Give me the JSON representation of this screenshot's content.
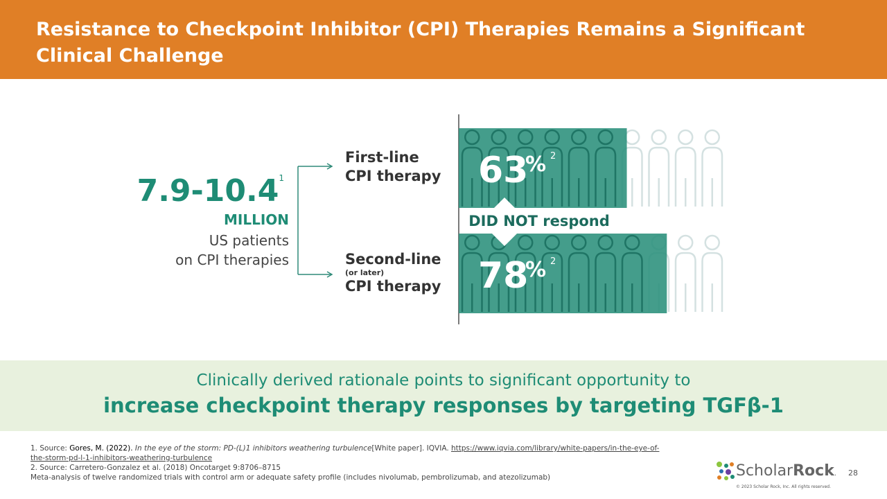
{
  "header": {
    "title": "Resistance to Checkpoint Inhibitor (CPI) Therapies Remains a Significant Clinical Challenge"
  },
  "patients": {
    "range": "7.9-10.4",
    "footnote": "1",
    "unit": "MILLION",
    "description_lines": [
      "US patients",
      "on CPI therapies"
    ]
  },
  "pictogram": {
    "caption": "DID NOT respond",
    "rows": [
      {
        "label_lines": [
          "First-line",
          "CPI therapy"
        ],
        "value": 63,
        "unit": "%",
        "footnote": "2"
      },
      {
        "label_lines": [
          "Second-line",
          "(or later)",
          "CPI therapy"
        ],
        "value": 78,
        "unit": "%",
        "footnote": "2"
      }
    ]
  },
  "banner": {
    "line1": "Clinically derived rationale points to significant opportunity to",
    "line2": "increase checkpoint therapy responses by targeting TGFβ-1"
  },
  "footnotes": {
    "source1": {
      "prefix": "1. Source: ",
      "author": "Gores, M. (2022). ",
      "title": "In the eye of the storm: PD-(L)1 inhibitors weathering turbulence",
      "kind": "[White paper].  IQVIA. ",
      "url": "https://www.iqvia.com/library/white-papers/in-the-eye-of-the-storm-pd-l-1-inhibitors-weathering-turbulence"
    },
    "source2": "2. Source: Carretero-Gonzalez et al. (2018) Oncotarget 9:8706–8715",
    "note": "Meta-analysis of twelve randomized trials with control arm or adequate safety profile (includes nivolumab, pembrolizumab, and atezolizumab)"
  },
  "footer": {
    "logo_light": "Scholar",
    "logo_bold": "Rock",
    "logo_mark": ".",
    "page": "28",
    "copyright": "© 2023 Scholar Rock, Inc. All rights reserved."
  }
}
